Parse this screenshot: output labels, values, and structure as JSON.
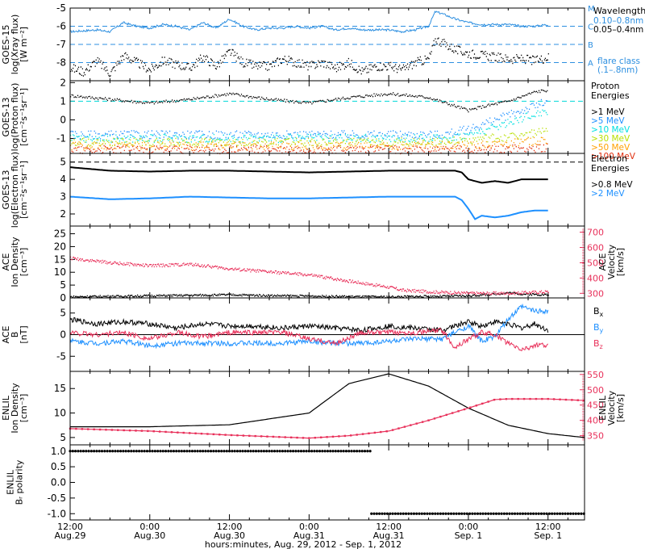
{
  "footer": {
    "time_label": "hours:minutes, Aug. 29, 2012 - Sep.  1, 2012"
  },
  "x_ticks": [
    {
      "t": 0,
      "hm": "12:00",
      "day": "Aug.29"
    },
    {
      "t": 12,
      "hm": "0:00",
      "day": "Aug.30"
    },
    {
      "t": 24,
      "hm": "12:00",
      "day": "Aug.30"
    },
    {
      "t": 36,
      "hm": "0:00",
      "day": "Aug.31"
    },
    {
      "t": 48,
      "hm": "12:00",
      "day": "Aug.31"
    },
    {
      "t": 60,
      "hm": "0:00",
      "day": "Sep. 1"
    },
    {
      "t": 72,
      "hm": "12:00",
      "day": "Sep. 1"
    }
  ],
  "chart_data": [
    {
      "type": "line",
      "panel": "goes15-xray",
      "ylabel_lines": [
        "GOES-15",
        "log(Xray flux)",
        "[W m⁻²]"
      ],
      "ylim": [
        -9,
        -5
      ],
      "yticks": [
        -5,
        -6,
        -7,
        -8
      ],
      "xlim_hours": [
        0,
        77.5
      ],
      "flare_levels": [
        {
          "value": -5,
          "letter": "M"
        },
        {
          "value": -6,
          "letter": "C"
        },
        {
          "value": -7,
          "letter": "B"
        },
        {
          "value": -8,
          "letter": "A"
        }
      ],
      "legend": {
        "title": "Wavelength",
        "items": [
          {
            "name": "0.10–0.8nm",
            "color": "#2d8fe0"
          },
          {
            "name": "0.05–0.4nm",
            "color": "#000000"
          }
        ],
        "note_lines": [
          "flare class",
          "(.1–.8nm)"
        ]
      },
      "series": [
        {
          "name": "0.10–0.8nm",
          "color": "#2d8fe0",
          "x": [
            0,
            4,
            6,
            8,
            10,
            12,
            14,
            16,
            18,
            20,
            22,
            24,
            26,
            28,
            30,
            32,
            34,
            36,
            38,
            40,
            42,
            44,
            46,
            48,
            50,
            52,
            54,
            55,
            56,
            58,
            60,
            62,
            64,
            66,
            68,
            70,
            72
          ],
          "y": [
            -6.3,
            -6.2,
            -6.3,
            -5.8,
            -6.0,
            -6.1,
            -5.9,
            -6.0,
            -6.2,
            -5.8,
            -6.1,
            -5.6,
            -6.0,
            -6.2,
            -6.1,
            -6.1,
            -6.0,
            -6.1,
            -6.0,
            -6.2,
            -6.1,
            -6.2,
            -6.2,
            -6.2,
            -6.3,
            -6.2,
            -6.0,
            -5.2,
            -5.3,
            -5.6,
            -5.8,
            -5.9,
            -5.9,
            -5.9,
            -6.0,
            -6.0,
            -5.9
          ]
        },
        {
          "name": "0.05–0.4nm",
          "color": "#000000",
          "x": [
            0,
            2,
            4,
            6,
            8,
            10,
            12,
            14,
            16,
            18,
            20,
            22,
            24,
            26,
            28,
            30,
            32,
            34,
            36,
            38,
            40,
            42,
            44,
            46,
            48,
            50,
            52,
            54,
            55,
            56,
            58,
            60,
            62,
            64,
            66,
            68,
            70,
            72
          ],
          "y": [
            -8.3,
            -8.5,
            -7.9,
            -8.6,
            -7.6,
            -8.0,
            -8.4,
            -7.9,
            -8.1,
            -8.3,
            -7.7,
            -8.2,
            -7.4,
            -8.0,
            -8.2,
            -8.2,
            -7.8,
            -8.0,
            -8.2,
            -8.0,
            -8.3,
            -8.0,
            -8.5,
            -8.2,
            -8.2,
            -8.4,
            -8.0,
            -7.8,
            -6.7,
            -6.9,
            -7.3,
            -7.5,
            -7.6,
            -7.7,
            -7.8,
            -7.8,
            -7.9,
            -7.7
          ]
        }
      ]
    },
    {
      "type": "scatter",
      "panel": "goes13-proton",
      "ylabel_lines": [
        "GOES-13",
        "log(Proton flux)",
        "[cm⁻²s⁻¹sr⁻¹]"
      ],
      "ylim": [
        -1.8,
        2.1
      ],
      "yticks": [
        2,
        1,
        0,
        -1
      ],
      "xlim_hours": [
        0,
        77.5
      ],
      "threshold": 1,
      "legend": {
        "title_lines": [
          "Proton",
          "Energies"
        ]
      },
      "series": [
        {
          "name": ">1 MeV",
          "color": "#000000",
          "x": [
            0,
            6,
            12,
            18,
            24,
            30,
            36,
            42,
            48,
            54,
            60,
            62,
            66,
            70,
            72
          ],
          "y": [
            1.3,
            1.1,
            0.9,
            1.1,
            1.4,
            1.1,
            0.9,
            1.2,
            1.4,
            1.2,
            0.5,
            0.7,
            1.0,
            1.5,
            1.6
          ]
        },
        {
          "name": ">5 MeV",
          "color": "#1e90ff",
          "x": [
            0,
            12,
            24,
            36,
            48,
            56,
            60,
            64,
            68,
            72
          ],
          "y": [
            -0.8,
            -0.8,
            -0.8,
            -0.8,
            -0.8,
            -0.8,
            -0.5,
            0.0,
            0.5,
            1.0
          ]
        },
        {
          "name": ">10 MeV",
          "color": "#00e0e0",
          "x": [
            0,
            12,
            24,
            36,
            48,
            56,
            60,
            64,
            68,
            72
          ],
          "y": [
            -1.0,
            -1.0,
            -1.0,
            -1.0,
            -1.0,
            -1.0,
            -0.8,
            -0.4,
            0.1,
            0.5
          ]
        },
        {
          "name": ">30 MeV",
          "color": "#b8e000",
          "x": [
            0,
            24,
            48,
            60,
            66,
            72
          ],
          "y": [
            -1.2,
            -1.2,
            -1.2,
            -1.1,
            -0.9,
            -0.6
          ]
        },
        {
          "name": ">50 MeV",
          "color": "#ffa000",
          "x": [
            0,
            24,
            48,
            60,
            66,
            72
          ],
          "y": [
            -1.4,
            -1.4,
            -1.4,
            -1.35,
            -1.25,
            -1.1
          ]
        },
        {
          "name": ">100 MeV",
          "color": "#e03010",
          "x": [
            0,
            24,
            48,
            60,
            66,
            72
          ],
          "y": [
            -1.6,
            -1.6,
            -1.6,
            -1.6,
            -1.55,
            -1.5
          ]
        }
      ]
    },
    {
      "type": "line",
      "panel": "goes13-electron",
      "ylabel_lines": [
        "GOES-13",
        "log(Electron flux)",
        "[cm⁻²s⁻¹sr⁻¹]"
      ],
      "ylim": [
        1.3,
        5.5
      ],
      "yticks": [
        5,
        4,
        3,
        2
      ],
      "xlim_hours": [
        0,
        77.5
      ],
      "threshold": 5,
      "legend": {
        "title_lines": [
          "Electron",
          "Energies"
        ]
      },
      "series": [
        {
          "name": ">0.8 MeV",
          "color": "#000000",
          "x": [
            0,
            6,
            12,
            18,
            24,
            30,
            36,
            42,
            48,
            54,
            58,
            59,
            60,
            62,
            64,
            66,
            68,
            70,
            72
          ],
          "y": [
            4.7,
            4.5,
            4.45,
            4.5,
            4.5,
            4.45,
            4.4,
            4.45,
            4.5,
            4.5,
            4.5,
            4.4,
            4.0,
            3.8,
            3.9,
            3.8,
            4.0,
            4.0,
            4.0
          ]
        },
        {
          "name": ">2 MeV",
          "color": "#1e90ff",
          "x": [
            0,
            6,
            12,
            18,
            24,
            30,
            36,
            42,
            48,
            54,
            58,
            59,
            60,
            61,
            62,
            64,
            66,
            68,
            70,
            72
          ],
          "y": [
            3.0,
            2.85,
            2.9,
            3.0,
            2.95,
            2.9,
            2.9,
            2.95,
            3.0,
            3.0,
            3.0,
            2.8,
            2.3,
            1.7,
            1.9,
            1.8,
            1.9,
            2.1,
            2.2,
            2.2
          ]
        }
      ]
    },
    {
      "type": "line",
      "panel": "ace-density-velocity",
      "ylabel_lines": [
        "ACE",
        "Ion Density",
        "[cm⁻³]"
      ],
      "ylabel_right_lines": [
        "ACE",
        "Velocity",
        "[km/s]"
      ],
      "ylim": [
        0,
        28
      ],
      "yticks": [
        0,
        5,
        10,
        15,
        20,
        25
      ],
      "ylim_right": [
        270,
        740
      ],
      "yticks_right": [
        300,
        400,
        500,
        600,
        700
      ],
      "xlim_hours": [
        0,
        77.5
      ],
      "series": [
        {
          "name": "Ion Density",
          "color": "#000000",
          "axis": "left",
          "x": [
            0,
            6,
            12,
            18,
            24,
            30,
            36,
            42,
            48,
            54,
            60,
            64,
            66,
            68,
            72
          ],
          "y": [
            0.4,
            0.6,
            0.8,
            1.0,
            1.2,
            0.9,
            0.7,
            0.5,
            0.4,
            0.6,
            0.8,
            1.5,
            2.0,
            1.5,
            1.2
          ]
        },
        {
          "name": "Velocity",
          "color": "#e8305a",
          "axis": "right",
          "x": [
            0,
            2,
            6,
            12,
            18,
            24,
            30,
            36,
            42,
            48,
            50,
            54,
            60,
            66,
            72
          ],
          "y": [
            530,
            520,
            500,
            480,
            490,
            460,
            440,
            420,
            380,
            340,
            320,
            310,
            300,
            300,
            310
          ]
        }
      ]
    },
    {
      "type": "line",
      "panel": "ace-b",
      "ylabel_lines": [
        "ACE",
        "B",
        "[nT]"
      ],
      "ylim": [
        -8.5,
        8.5
      ],
      "yticks": [
        5,
        0,
        -5
      ],
      "xlim_hours": [
        0,
        77.5
      ],
      "series": [
        {
          "name": "Bx",
          "color": "#000000",
          "x": [
            0,
            4,
            8,
            12,
            16,
            20,
            24,
            28,
            32,
            36,
            40,
            44,
            48,
            52,
            56,
            60,
            62,
            64,
            66,
            68,
            70,
            72
          ],
          "y": [
            3.5,
            2.5,
            3.0,
            2.5,
            1.5,
            2.5,
            2.0,
            2.0,
            1.5,
            2.0,
            1.5,
            1.0,
            2.0,
            1.5,
            1.0,
            3.0,
            2.0,
            3.0,
            2.5,
            1.5,
            2.5,
            1.0
          ]
        },
        {
          "name": "By",
          "color": "#1e90ff",
          "x": [
            0,
            4,
            8,
            12,
            16,
            20,
            24,
            28,
            32,
            36,
            40,
            44,
            48,
            52,
            56,
            60,
            62,
            64,
            66,
            68,
            70,
            72
          ],
          "y": [
            -1.5,
            -2.0,
            -1.5,
            -2.5,
            -2.0,
            -2.0,
            -2.0,
            -2.0,
            -2.0,
            -1.5,
            -2.0,
            -2.0,
            -1.5,
            -1.0,
            -1.0,
            2.0,
            -1.5,
            -0.5,
            3.5,
            6.5,
            5.5,
            5.5
          ]
        },
        {
          "name": "Bz",
          "color": "#e8305a",
          "x": [
            0,
            4,
            8,
            12,
            16,
            20,
            24,
            28,
            32,
            36,
            40,
            44,
            48,
            52,
            56,
            58,
            60,
            62,
            64,
            66,
            68,
            70,
            72
          ],
          "y": [
            0.5,
            0.0,
            0.5,
            -1.0,
            0.5,
            -0.5,
            0.5,
            0.5,
            0.5,
            -1.0,
            -2.0,
            0.5,
            0.5,
            0.5,
            1.0,
            -3.0,
            -1.0,
            0.5,
            0.0,
            -2.0,
            -3.5,
            -2.5,
            -2.5
          ]
        }
      ]
    },
    {
      "type": "line",
      "panel": "enlil-density-velocity",
      "ylabel_lines": [
        "ENLIL",
        "Ion Density",
        "[cm⁻³]"
      ],
      "ylabel_right_lines": [
        "ENLIL",
        "Velocity",
        "[km/s]"
      ],
      "ylim": [
        3.5,
        18.5
      ],
      "yticks": [
        5,
        10,
        15
      ],
      "ylim_right": [
        320,
        560
      ],
      "yticks_right": [
        350,
        400,
        450,
        500,
        550
      ],
      "xlim_hours": [
        0,
        77.5
      ],
      "series": [
        {
          "name": "Ion Density",
          "color": "#000000",
          "axis": "left",
          "x": [
            0,
            12,
            24,
            36,
            42,
            48,
            54,
            60,
            66,
            72,
            77.5
          ],
          "y": [
            7.2,
            7.2,
            7.6,
            10.0,
            16.0,
            18.0,
            15.5,
            11.0,
            7.5,
            5.8,
            5.0
          ]
        },
        {
          "name": "Velocity",
          "color": "#e8305a",
          "axis": "right",
          "x": [
            0,
            12,
            24,
            36,
            42,
            48,
            54,
            60,
            64,
            66,
            72,
            77.5
          ],
          "y": [
            373,
            365,
            352,
            342,
            350,
            365,
            400,
            440,
            468,
            470,
            470,
            465
          ]
        }
      ]
    },
    {
      "type": "scatter",
      "panel": "enlil-polarity",
      "ylabel_lines": [
        "ENLIL",
        "Bᵣ polarity"
      ],
      "ylim": [
        -1.2,
        1.2
      ],
      "yticks": [
        1.0,
        0.5,
        0.0,
        -0.5,
        -1.0
      ],
      "ytick_labels": [
        "1.0",
        "0.5",
        "0.0",
        "-0.5",
        "-1.0"
      ],
      "xlim_hours": [
        0,
        77.5
      ],
      "series": [
        {
          "name": "polarity",
          "color": "#000000",
          "x": [
            0,
            45.3
          ],
          "y": [
            1,
            1
          ]
        },
        {
          "name": "polarity",
          "color": "#000000",
          "x": [
            45.4,
            77.5
          ],
          "y": [
            -1,
            -1
          ]
        }
      ]
    }
  ]
}
